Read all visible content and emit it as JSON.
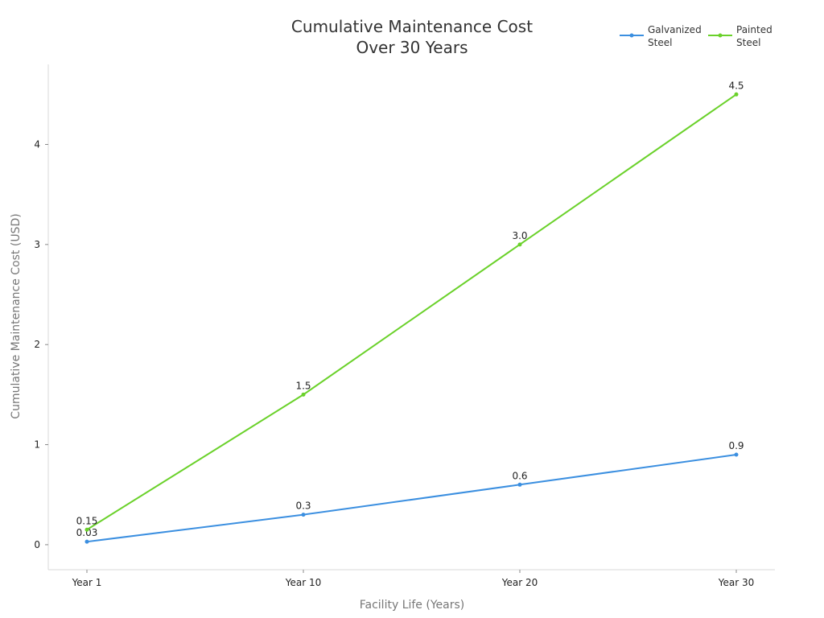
{
  "chart_data": {
    "type": "line",
    "title": [
      "Cumulative Maintenance Cost",
      "Over 30 Years"
    ],
    "xlabel": "Facility Life (Years)",
    "ylabel": "Cumulative Maintenance Cost (USD)",
    "categories": [
      "Year 1",
      "Year 10",
      "Year 20",
      "Year 30"
    ],
    "ylim": [
      -0.25,
      4.8
    ],
    "yticks": [
      0,
      1,
      2,
      3,
      4
    ],
    "grid": false,
    "legend_position": "top-right",
    "series": [
      {
        "name": "Galvanized Steel",
        "legend_lines": [
          "Galvanized",
          "Steel"
        ],
        "color": "#3b8fe0",
        "values": [
          0.03,
          0.3,
          0.6,
          0.9
        ],
        "labels": [
          "0.03",
          "0.3",
          "0.6",
          "0.9"
        ]
      },
      {
        "name": "Painted Steel",
        "legend_lines": [
          "Painted",
          "Steel"
        ],
        "color": "#6ad12a",
        "values": [
          0.15,
          1.5,
          3.0,
          4.5
        ],
        "labels": [
          "0.15",
          "1.5",
          "3.0",
          "4.5"
        ]
      }
    ]
  }
}
